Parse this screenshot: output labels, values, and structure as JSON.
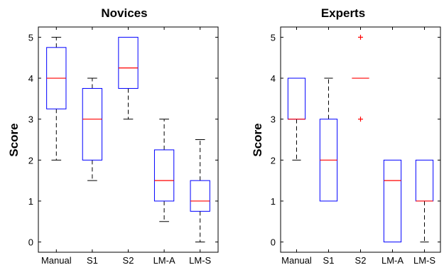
{
  "colors": {
    "box": "#0000ff",
    "median": "#ff0000",
    "whisker": "#000000",
    "outlier": "#ff0000",
    "axes": "#000000"
  },
  "chart_data": [
    {
      "type": "box",
      "title": "Novices",
      "ylabel": "Score",
      "xlabel": "",
      "ylim": [
        -0.25,
        5.25
      ],
      "yticks": [
        0,
        1,
        2,
        3,
        4,
        5
      ],
      "categories": [
        "Manual",
        "S1",
        "S2",
        "LM-A",
        "LM-S"
      ],
      "boxes": [
        {
          "min": 2,
          "q1": 3.25,
          "median": 4,
          "q3": 4.75,
          "max": 5,
          "outliers": []
        },
        {
          "min": 1.5,
          "q1": 2,
          "median": 3,
          "q3": 3.75,
          "max": 4,
          "outliers": []
        },
        {
          "min": 3,
          "q1": 3.75,
          "median": 4.25,
          "q3": 5,
          "max": 5,
          "outliers": []
        },
        {
          "min": 0.5,
          "q1": 1,
          "median": 1.5,
          "q3": 2.25,
          "max": 3,
          "outliers": []
        },
        {
          "min": 0,
          "q1": 0.75,
          "median": 1,
          "q3": 1.5,
          "max": 2.5,
          "outliers": []
        }
      ]
    },
    {
      "type": "box",
      "title": "Experts",
      "ylabel": "Score",
      "xlabel": "",
      "ylim": [
        -0.25,
        5.25
      ],
      "yticks": [
        0,
        1,
        2,
        3,
        4,
        5
      ],
      "categories": [
        "Manual",
        "S1",
        "S2",
        "LM-A",
        "LM-S"
      ],
      "boxes": [
        {
          "min": 2,
          "q1": 3,
          "median": 3,
          "q3": 4,
          "max": 4,
          "outliers": []
        },
        {
          "min": 1,
          "q1": 1,
          "median": 2,
          "q3": 3,
          "max": 4,
          "outliers": []
        },
        {
          "min": 4,
          "q1": 4,
          "median": 4,
          "q3": 4,
          "max": 4,
          "outliers": [
            5,
            3
          ]
        },
        {
          "min": 0,
          "q1": 0,
          "median": 1.5,
          "q3": 2,
          "max": 2,
          "outliers": []
        },
        {
          "min": 0,
          "q1": 1,
          "median": 1,
          "q3": 2,
          "max": 2,
          "outliers": []
        }
      ]
    }
  ]
}
